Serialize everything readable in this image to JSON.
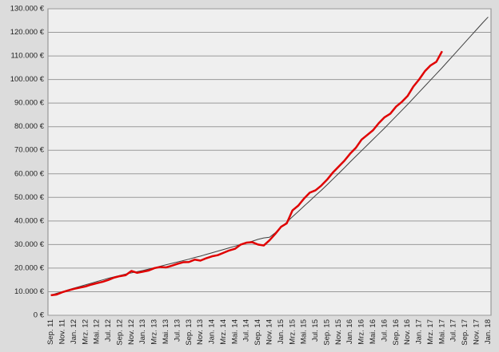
{
  "chart_data": {
    "type": "line",
    "categories": [
      "Sep. 11",
      null,
      "Nov. 11",
      null,
      "Jan. 12",
      null,
      "Mrz. 12",
      null,
      "Mai. 12",
      null,
      "Jul. 12",
      null,
      "Sep. 12",
      null,
      "Nov. 12",
      null,
      "Jan. 13",
      null,
      "Mrz. 13",
      null,
      "Mai. 13",
      null,
      "Jul. 13",
      null,
      "Sep. 13",
      null,
      "Nov. 13",
      null,
      "Jan. 14",
      null,
      "Mrz. 14",
      null,
      "Mai. 14",
      null,
      "Jul. 14",
      null,
      "Sep. 14",
      null,
      "Nov. 14",
      null,
      "Jan. 15",
      null,
      "Mrz. 15",
      null,
      "Mai. 15",
      null,
      "Jul. 15",
      null,
      "Sep. 15",
      null,
      "Nov. 15",
      null,
      "Jan. 16",
      null,
      "Mrz. 16",
      null,
      "Mai. 16",
      null,
      "Jul. 16",
      null,
      "Sep. 16",
      null,
      "Nov. 16",
      null,
      "Jan. 17",
      null,
      "Mrz. 17",
      null,
      "Mai. 17",
      null,
      "Jul. 17",
      null,
      "Sep. 17",
      null,
      "Nov. 17",
      null,
      "Jan. 18"
    ],
    "series": [
      {
        "color": "#404040",
        "width": 1,
        "values": [
          8500,
          9300,
          10000,
          10800,
          11500,
          12200,
          12900,
          13600,
          14300,
          15000,
          15700,
          16300,
          16900,
          17500,
          18000,
          18500,
          19000,
          19600,
          20200,
          20800,
          21400,
          22000,
          22600,
          23200,
          23800,
          24500,
          25100,
          25800,
          26500,
          27200,
          27900,
          28600,
          29300,
          30000,
          30700,
          31400,
          32200,
          32800,
          33100,
          35000,
          37300,
          39500,
          41800,
          44000,
          46300,
          48500,
          50800,
          53000,
          55300,
          57700,
          60100,
          62500,
          65000,
          67400,
          69800,
          72200,
          74600,
          77000,
          79400,
          81900,
          84400,
          86900,
          89400,
          92000,
          94600,
          97200,
          99800,
          102400,
          105000,
          107700,
          110400,
          113100,
          115800,
          118500,
          121200,
          123900,
          126500
        ]
      },
      {
        "color": "#e00000",
        "width": 2.5,
        "values": [
          8500,
          8800,
          9800,
          10500,
          11200,
          11700,
          12200,
          13000,
          13600,
          14200,
          15000,
          16000,
          16600,
          17000,
          18800,
          18000,
          18500,
          19000,
          20000,
          20500,
          20300,
          21000,
          21800,
          22500,
          22600,
          23600,
          23200,
          24200,
          25000,
          25500,
          26500,
          27500,
          28200,
          30000,
          30800,
          31000,
          30000,
          29600,
          31800,
          34500,
          37500,
          39000,
          44500,
          46500,
          49500,
          52000,
          53000,
          55000,
          57500,
          60500,
          63000,
          65500,
          68500,
          71000,
          74500,
          76500,
          78500,
          81500,
          84000,
          85500,
          88500,
          90500,
          93000,
          97000,
          100000,
          103500,
          106000,
          107500,
          112000,
          null,
          null,
          null,
          null,
          null,
          null,
          null,
          null
        ]
      }
    ],
    "ylim": [
      0,
      130000
    ],
    "yticks": [
      {
        "value": 0,
        "label": "0 €"
      },
      {
        "value": 10000,
        "label": "10.000 €"
      },
      {
        "value": 20000,
        "label": "20.000 €"
      },
      {
        "value": 30000,
        "label": "30.000 €"
      },
      {
        "value": 40000,
        "label": "40.000 €"
      },
      {
        "value": 50000,
        "label": "50.000 €"
      },
      {
        "value": 60000,
        "label": "60.000 €"
      },
      {
        "value": 70000,
        "label": "70.000 €"
      },
      {
        "value": 80000,
        "label": "80.000 €"
      },
      {
        "value": 90000,
        "label": "90.000 €"
      },
      {
        "value": 100000,
        "label": "100.000 €"
      },
      {
        "value": 110000,
        "label": "110.000 €"
      },
      {
        "value": 120000,
        "label": "120.000 €"
      },
      {
        "value": 130000,
        "label": "130.000 €"
      }
    ],
    "grid": true
  }
}
